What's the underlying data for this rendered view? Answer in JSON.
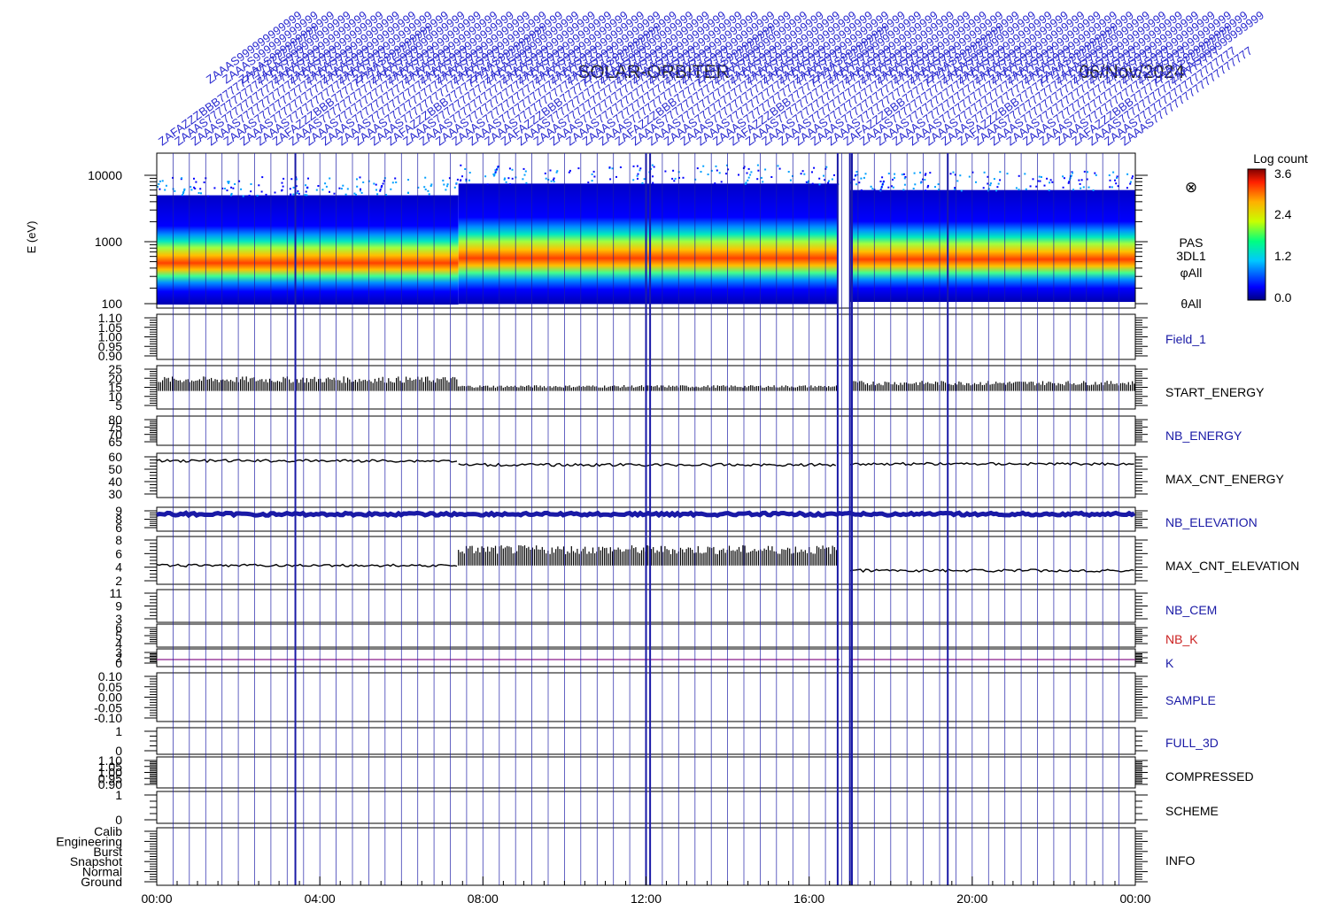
{
  "header": {
    "title": "SOLAR-ORBITER",
    "date": "06/Nov/2024",
    "event_labels": [
      "ZAFAZZZBBB",
      "ZAAAS",
      "ZAAAS",
      "ZAAAS",
      "ZAAAS",
      "ZAAAS",
      "ZAAAS"
    ]
  },
  "spectrogram": {
    "ylabel": "E (eV)",
    "yticks": [
      "10000",
      "1000",
      "100"
    ],
    "instrument_lines": [
      "PAS",
      "3DL1",
      "φAll",
      "θAll"
    ],
    "colorbar": {
      "title": "Log count",
      "ticks": [
        "3.6",
        "2.4",
        "1.2",
        "0.0"
      ]
    }
  },
  "panels": [
    {
      "name": "Field_1",
      "color": "#1a1aa6",
      "ticks": [
        "1.10",
        "1.05",
        "1.00",
        "0.95",
        "0.90"
      ]
    },
    {
      "name": "START_ENERGY",
      "color": "#000000",
      "ticks": [
        "25",
        "20",
        "15",
        "10",
        "5"
      ]
    },
    {
      "name": "NB_ENERGY",
      "color": "#1a1aa6",
      "ticks": [
        "80",
        "75",
        "70",
        "65"
      ]
    },
    {
      "name": "MAX_CNT_ENERGY",
      "color": "#000000",
      "ticks": [
        "60",
        "50",
        "40",
        "30"
      ]
    },
    {
      "name": "NB_ELEVATION",
      "color": "#1a1aa6",
      "ticks": [
        "9",
        "8",
        "6"
      ]
    },
    {
      "name": "MAX_CNT_ELEVATION",
      "color": "#000000",
      "ticks": [
        "8",
        "6",
        "4",
        "2"
      ]
    },
    {
      "name": "NB_CEM",
      "color": "#1a1aa6",
      "ticks": [
        "11",
        "9",
        "3"
      ]
    },
    {
      "name": "NB_K",
      "color": "#cc2222",
      "ticks": [
        "6",
        "5",
        "4"
      ]
    },
    {
      "name": "K",
      "color": "#1a1aa6",
      "ticks": [
        "3",
        "2",
        "0"
      ]
    },
    {
      "name": "SAMPLE",
      "color": "#1a1aa6",
      "ticks": [
        "0.10",
        "0.05",
        "0.00",
        "-0.05",
        "-0.10"
      ]
    },
    {
      "name": "FULL_3D",
      "color": "#1a1aa6",
      "ticks": [
        "1",
        "0"
      ]
    },
    {
      "name": "COMPRESSED",
      "color": "#000000",
      "ticks": [
        "1.10",
        "1.05",
        "1.00",
        "0.95",
        "0.90"
      ]
    },
    {
      "name": "SCHEME",
      "color": "#000000",
      "ticks": [
        "1",
        "0"
      ]
    },
    {
      "name": "INFO",
      "color": "#000000",
      "ticks": [
        "Calib",
        "Engineering",
        "Burst",
        "Snapshot",
        "Normal",
        "Ground"
      ]
    }
  ],
  "xaxis": {
    "ticks": [
      "00:00",
      "04:00",
      "08:00",
      "12:00",
      "16:00",
      "20:00",
      "00:00"
    ]
  },
  "colors": {
    "axis": "#000000",
    "label_blue": "#1a1aa6",
    "marker_line": "#1a1aa6"
  },
  "chart_data": {
    "type": "heatmap",
    "title": "SOLAR-ORBITER",
    "date": "06/Nov/2024",
    "xlabel": "",
    "ylabel": "E (eV)",
    "y_scale": "log",
    "ylim": [
      100,
      14000
    ],
    "xlim_hours": [
      0,
      24
    ],
    "colorbar": {
      "label": "Log count",
      "range": [
        0.0,
        3.6
      ]
    },
    "data_gap_hours": [
      16.75,
      17.0
    ],
    "peak_energy_eV": [
      {
        "hours": [
          0,
          7.4
        ],
        "peak": 700,
        "max": 5000,
        "min": 120
      },
      {
        "hours": [
          7.4,
          16.7
        ],
        "peak": 650,
        "max": 7500,
        "min": 130
      },
      {
        "hours": [
          17.0,
          24
        ],
        "peak": 600,
        "max": 6000,
        "min": 140
      }
    ],
    "series": [
      {
        "name": "START_ENERGY",
        "segments": [
          {
            "hours": [
              0,
              7.4
            ],
            "low": 12,
            "high": 22
          },
          {
            "hours": [
              7.4,
              16.7
            ],
            "low": 12,
            "high": 16
          },
          {
            "hours": [
              17.0,
              24
            ],
            "low": 12,
            "high": 19
          }
        ]
      },
      {
        "name": "MAX_CNT_ENERGY",
        "segments": [
          {
            "hours": [
              0,
              7.4
            ],
            "value": 60
          },
          {
            "hours": [
              7.4,
              16.7
            ],
            "value": 56
          },
          {
            "hours": [
              17.0,
              24
            ],
            "value": 57
          }
        ]
      },
      {
        "name": "NB_ELEVATION",
        "segments": [
          {
            "hours": [
              0,
              24
            ],
            "value": 9
          }
        ]
      },
      {
        "name": "MAX_CNT_ELEVATION",
        "segments": [
          {
            "hours": [
              0,
              7.4
            ],
            "value": 4
          },
          {
            "hours": [
              7.4,
              16.7
            ],
            "low": 4,
            "high": 8
          },
          {
            "hours": [
              17.0,
              24
            ],
            "value": 3
          }
        ]
      }
    ],
    "marker_lines_hours": [
      3.4,
      12.0,
      12.1,
      16.7,
      17.0,
      17.05,
      19.4
    ]
  }
}
